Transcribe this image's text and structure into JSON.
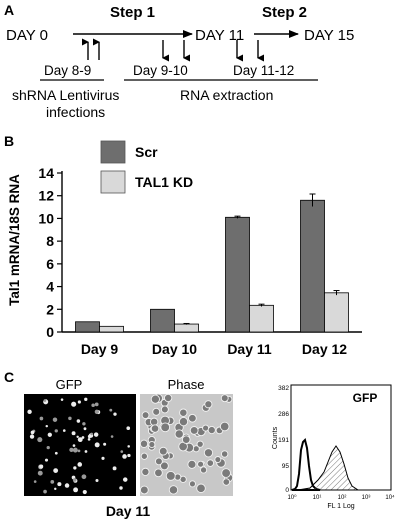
{
  "panel_a": {
    "label": "A",
    "day_0": "DAY 0",
    "day_11": "DAY 11",
    "day_15": "DAY 15",
    "step_1": "Step 1",
    "step_2": "Step 2",
    "period_infection": "Day 8-9",
    "period_extraction_1": "Day 9-10",
    "period_extraction_2": "Day 11-12",
    "caption_infection_line1": "shRNA Lentivirus",
    "caption_infection_line2": "infections",
    "caption_extraction": "RNA extraction"
  },
  "panel_b": {
    "label": "B"
  },
  "chart_data": {
    "type": "bar",
    "title": "",
    "xlabel": "",
    "ylabel": "Tal1 mRNA/18S RNA",
    "categories": [
      "Day 9",
      "Day 10",
      "Day 11",
      "Day 12"
    ],
    "ylim": [
      0,
      14
    ],
    "yticks": [
      0,
      2,
      4,
      6,
      8,
      10,
      12,
      14
    ],
    "grid": false,
    "legend_position": "top",
    "series": [
      {
        "name": "Scr",
        "color": "#6e6e6e",
        "values": [
          0.9,
          2.0,
          10.1,
          11.6
        ],
        "errors": [
          0.0,
          0.0,
          0.1,
          0.55
        ]
      },
      {
        "name": "TAL1 KD",
        "color": "#d9d9d9",
        "values": [
          0.5,
          0.7,
          2.35,
          3.45
        ],
        "errors": [
          0.0,
          0.05,
          0.1,
          0.2
        ]
      }
    ]
  },
  "panel_c": {
    "label": "C",
    "gfp_label": "GFP",
    "phase_label": "Phase",
    "day_label": "Day 11",
    "histogram": {
      "title": "GFP",
      "ylabel": "Counts",
      "xlabel": "FL 1 Log",
      "yticks": [
        "382",
        "286",
        "191",
        "95",
        "0"
      ],
      "xticks": [
        "10⁰",
        "10¹",
        "10²",
        "10³",
        "10⁴"
      ]
    }
  }
}
